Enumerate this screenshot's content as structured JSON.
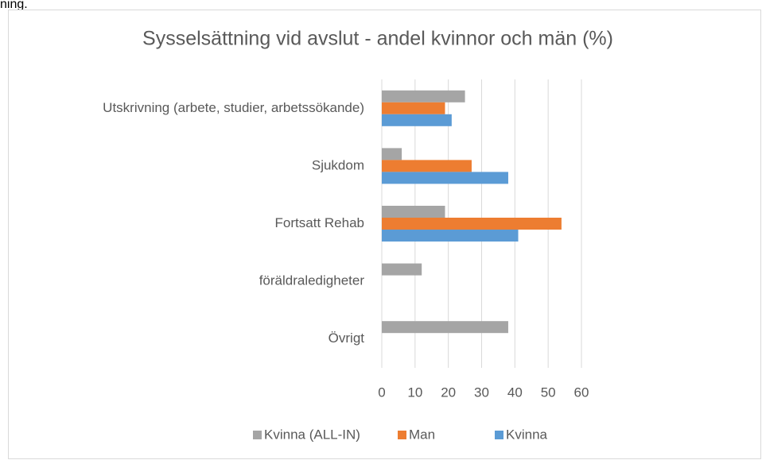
{
  "preceding_text": "ning.",
  "chart_data": {
    "type": "barh",
    "title": "Sysselsättning vid avslut - andel kvinnor och män (%)",
    "categories": [
      "Utskrivning (arbete, studier, arbetssökande)",
      "Sjukdom",
      "Fortsatt Rehab",
      "föräldraledigheter",
      "Övrigt"
    ],
    "series": [
      {
        "name": "Kvinna (ALL-IN)",
        "color": "#a5a5a5",
        "values": [
          25,
          6,
          19,
          12,
          38
        ]
      },
      {
        "name": "Man",
        "color": "#ed7d31",
        "values": [
          19,
          27,
          54,
          null,
          null
        ]
      },
      {
        "name": "Kvinna",
        "color": "#5b9bd5",
        "values": [
          21,
          38,
          41,
          null,
          null
        ]
      }
    ],
    "xlim": [
      0,
      60
    ],
    "xticks": [
      0,
      10,
      20,
      30,
      40,
      50,
      60
    ],
    "grid": true,
    "legend": "bottom"
  }
}
